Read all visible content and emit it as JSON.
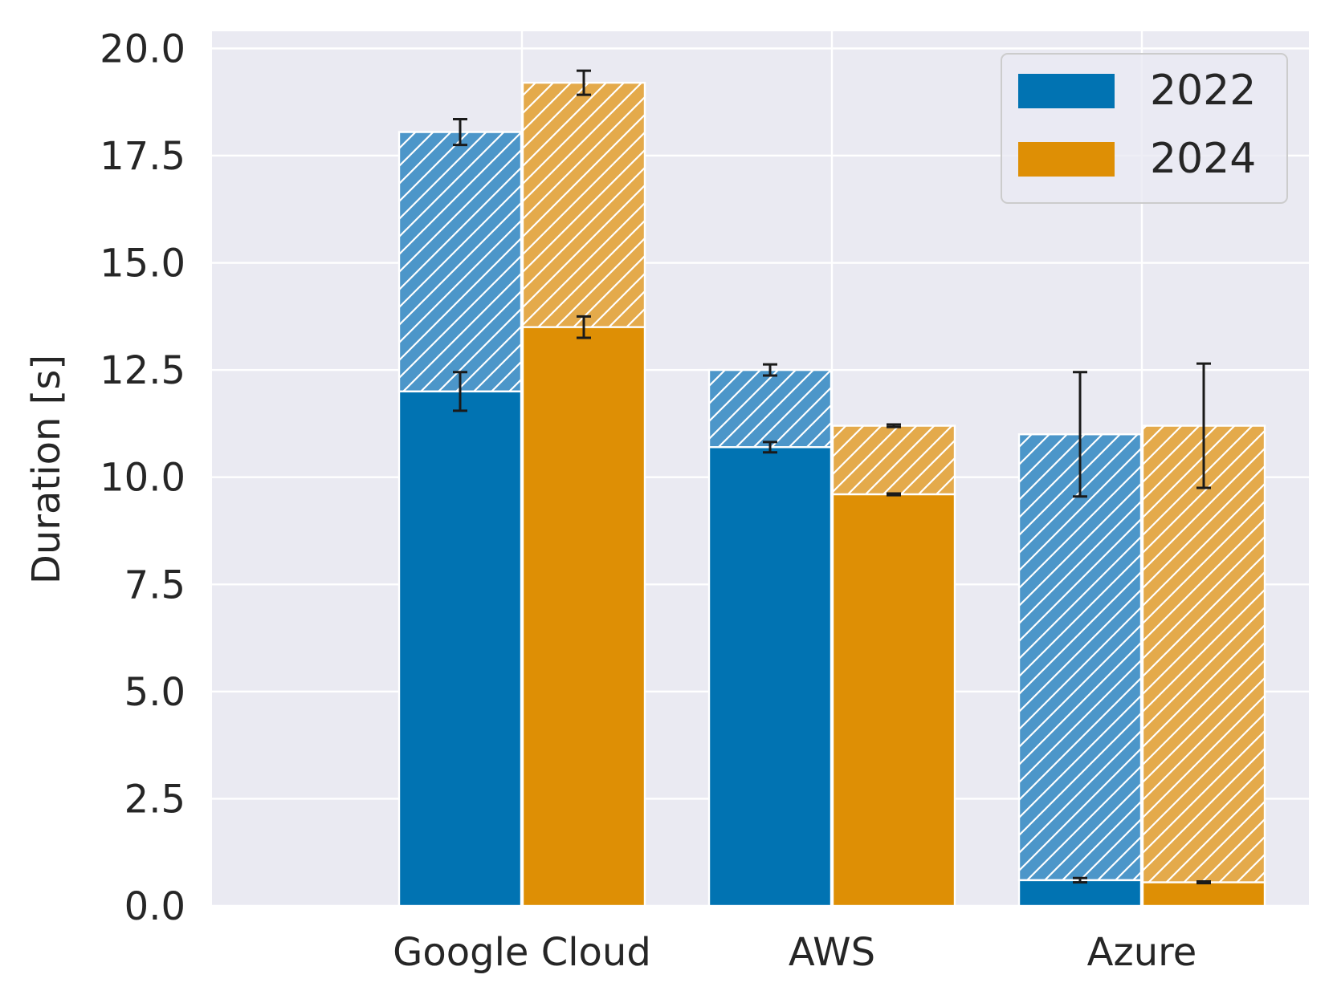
{
  "chart_data": {
    "type": "bar",
    "subtype": "stacked-grouped",
    "title": "",
    "xlabel": "",
    "ylabel": "Duration [s]",
    "ylim": [
      0,
      20.4
    ],
    "yticks": [
      "0.0",
      "2.5",
      "5.0",
      "7.5",
      "10.0",
      "12.5",
      "15.0",
      "17.5",
      "20.0"
    ],
    "categories": [
      "Google Cloud",
      "AWS",
      "Azure"
    ],
    "grid": true,
    "legend_position": "top-right",
    "segments_note": "solid lower segment plus hatched upper segment per bar",
    "series": [
      {
        "name": "2022",
        "color": "#0173b2",
        "hatch_color": "#4c96c9",
        "solid_values": [
          12.0,
          10.7,
          0.6
        ],
        "solid_errors": [
          0.45,
          0.12,
          0.05
        ],
        "total_values": [
          18.05,
          12.5,
          11.0
        ],
        "total_errors": [
          0.3,
          0.13,
          1.45
        ]
      },
      {
        "name": "2024",
        "color": "#de8f05",
        "hatch_color": "#e4aa4b",
        "solid_values": [
          13.5,
          9.6,
          0.55
        ],
        "solid_errors": [
          0.25,
          0.02,
          0.02
        ],
        "total_values": [
          19.2,
          11.2,
          11.2
        ],
        "total_errors": [
          0.28,
          0.03,
          1.45
        ]
      }
    ]
  }
}
